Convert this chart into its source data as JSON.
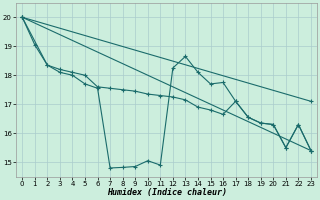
{
  "xlabel": "Humidex (Indice chaleur)",
  "background_color": "#cceedd",
  "grid_color": "#aacccc",
  "line_color": "#1a6b6b",
  "xlim": [
    -0.5,
    23.5
  ],
  "ylim": [
    14.5,
    20.5
  ],
  "yticks": [
    15,
    16,
    17,
    18,
    19,
    20
  ],
  "xticks": [
    0,
    1,
    2,
    3,
    4,
    5,
    6,
    7,
    8,
    9,
    10,
    11,
    12,
    13,
    14,
    15,
    16,
    17,
    18,
    19,
    20,
    21,
    22,
    23
  ],
  "line1": [
    [
      0,
      20.0
    ],
    [
      1,
      19.05
    ],
    [
      2,
      18.35
    ],
    [
      3,
      18.1
    ],
    [
      4,
      18.0
    ],
    [
      5,
      17.7
    ],
    [
      6,
      17.55
    ],
    [
      7,
      14.8
    ],
    [
      8,
      14.82
    ],
    [
      9,
      14.85
    ],
    [
      10,
      15.05
    ],
    [
      11,
      14.9
    ],
    [
      12,
      18.25
    ],
    [
      13,
      18.65
    ],
    [
      14,
      18.1
    ],
    [
      15,
      17.7
    ],
    [
      16,
      17.75
    ],
    [
      17,
      17.1
    ],
    [
      18,
      16.55
    ],
    [
      19,
      16.35
    ],
    [
      20,
      16.3
    ],
    [
      21,
      15.5
    ],
    [
      22,
      16.3
    ],
    [
      23,
      15.4
    ]
  ],
  "line2": [
    [
      0,
      20.0
    ],
    [
      2,
      18.35
    ],
    [
      3,
      18.2
    ],
    [
      4,
      18.1
    ],
    [
      5,
      18.0
    ],
    [
      6,
      17.6
    ],
    [
      7,
      17.55
    ],
    [
      8,
      17.5
    ],
    [
      9,
      17.45
    ],
    [
      10,
      17.35
    ],
    [
      11,
      17.3
    ],
    [
      12,
      17.25
    ],
    [
      13,
      17.15
    ],
    [
      14,
      16.9
    ],
    [
      15,
      16.8
    ],
    [
      16,
      16.65
    ],
    [
      17,
      17.1
    ],
    [
      18,
      16.55
    ],
    [
      19,
      16.35
    ],
    [
      20,
      16.3
    ],
    [
      21,
      15.5
    ],
    [
      22,
      16.3
    ],
    [
      23,
      15.4
    ]
  ],
  "line3": [
    [
      0,
      20.0
    ],
    [
      23,
      17.1
    ]
  ],
  "line4": [
    [
      0,
      20.0
    ],
    [
      23,
      15.4
    ]
  ]
}
